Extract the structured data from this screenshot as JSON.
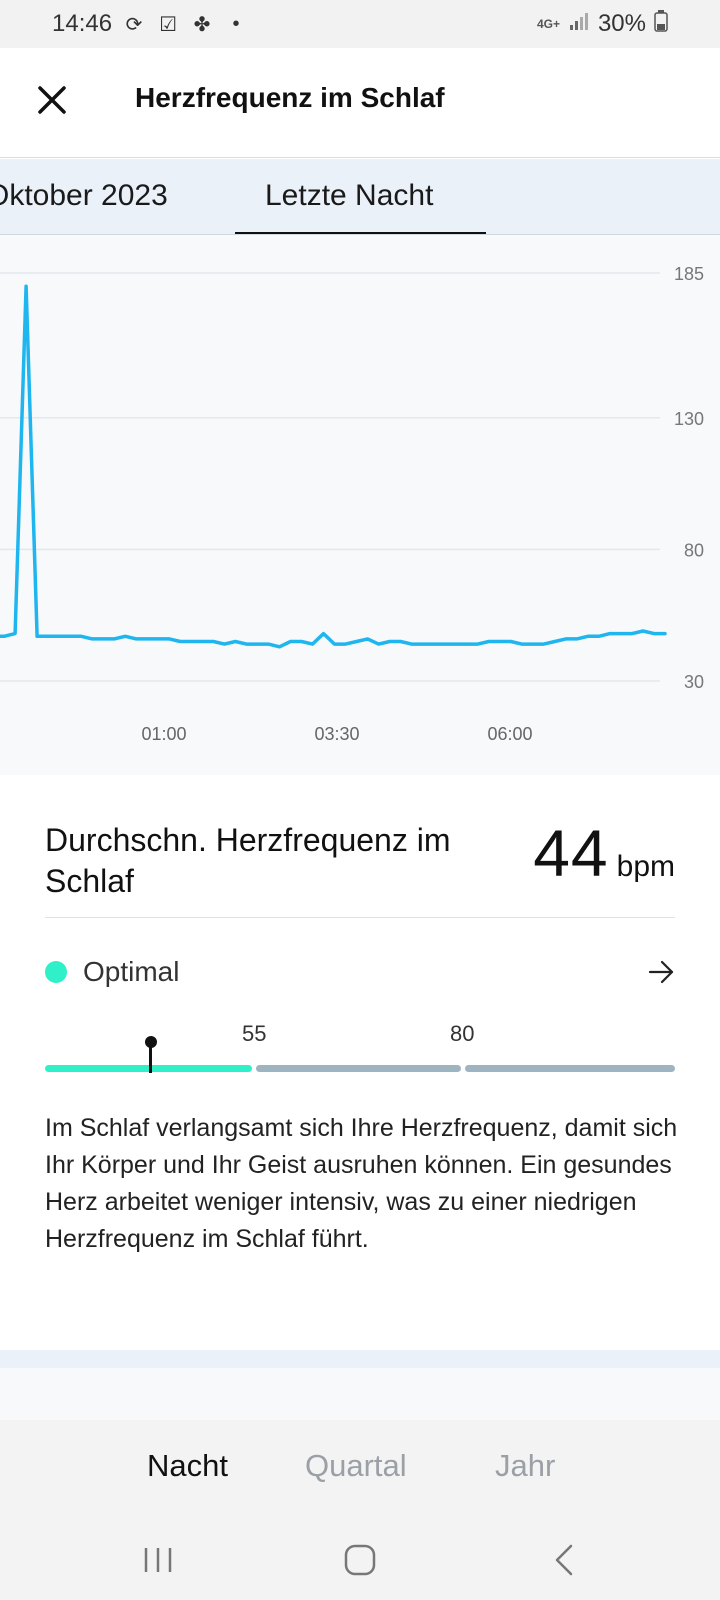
{
  "status_bar": {
    "time": "14:46",
    "network": "4G+",
    "battery": "30%",
    "left_icons": [
      "sync-icon",
      "checkbox-icon",
      "fan-icon",
      "dot-icon"
    ]
  },
  "header": {
    "title": "Herzfrequenz im Schlaf",
    "close_icon": "close-icon"
  },
  "tabs": {
    "previous": "Oktober 2023",
    "current": "Letzte Nacht"
  },
  "chart_data": {
    "type": "line",
    "title": "",
    "xlabel": "",
    "ylabel": "",
    "y_ticks": [
      "185",
      "130",
      "80",
      "30"
    ],
    "x_ticks": [
      "01:00",
      "03:30",
      "06:00"
    ],
    "ylim": [
      30,
      185
    ],
    "grid": true,
    "color": "#1fb6f0",
    "series": [
      {
        "values": [
          48,
          48,
          47,
          47,
          47,
          48,
          180,
          47,
          47,
          47,
          47,
          47,
          46,
          46,
          46,
          47,
          46,
          46,
          46,
          46,
          45,
          45,
          45,
          45,
          44,
          45,
          44,
          44,
          44,
          43,
          45,
          45,
          44,
          48,
          44,
          44,
          45,
          46,
          44,
          45,
          45,
          44,
          44,
          44,
          44,
          44,
          44,
          44,
          45,
          45,
          45,
          44,
          44,
          44,
          45,
          46,
          46,
          47,
          47,
          48,
          48,
          48,
          49,
          48,
          48
        ]
      }
    ]
  },
  "summary": {
    "title": "Durchschn. Herzfrequenz im Schlaf",
    "value": "44",
    "unit": "bpm",
    "status_label": "Optimal",
    "status_color": "#2ff0c8",
    "scale_labels": [
      "55",
      "80"
    ],
    "scale_value": 44
  },
  "description": "Im Schlaf verlangsamt sich Ihre Herzfrequenz, damit sich Ihr Körper und Ihr Geist ausruhen können. Ein gesundes Herz arbeitet weniger intensiv, was zu einer niedrigen Herzfrequenz im Schlaf führt.",
  "range_tabs": {
    "active": "Nacht",
    "second": "Quartal",
    "third": "Jahr"
  },
  "colors": {
    "accent": "#2ff0c8",
    "chart_line": "#1fb6f0",
    "scale_inactive": "#9fb4c1"
  }
}
